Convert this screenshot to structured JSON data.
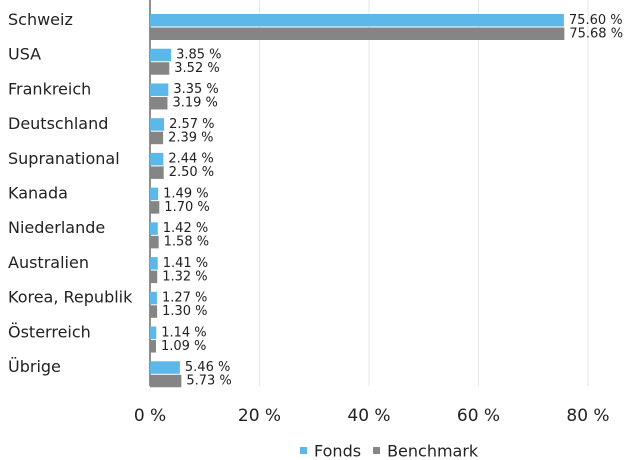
{
  "chart_data": {
    "type": "bar",
    "orientation": "horizontal",
    "categories": [
      "Schweiz",
      "USA",
      "Frankreich",
      "Deutschland",
      "Supranational",
      "Kanada",
      "Niederlande",
      "Australien",
      "Korea, Republik",
      "Österreich",
      "Übrige"
    ],
    "series": [
      {
        "name": "Fonds",
        "color": "#5bb8e8",
        "values": [
          75.6,
          3.85,
          3.35,
          2.57,
          2.44,
          1.49,
          1.42,
          1.41,
          1.27,
          1.14,
          5.46
        ],
        "value_labels": [
          "75.60 %",
          "3.85 %",
          "3.35 %",
          "2.57 %",
          "2.44 %",
          "1.49 %",
          "1.42 %",
          "1.41 %",
          "1.27 %",
          "1.14 %",
          "5.46 %"
        ]
      },
      {
        "name": "Benchmark",
        "color": "#858585",
        "values": [
          75.68,
          3.52,
          3.19,
          2.39,
          2.5,
          1.7,
          1.58,
          1.32,
          1.3,
          1.09,
          5.73
        ],
        "value_labels": [
          "75.68 %",
          "3.52 %",
          "3.19 %",
          "2.39 %",
          "2.50 %",
          "1.70 %",
          "1.58 %",
          "1.32 %",
          "1.30 %",
          "1.09 %",
          "5.73 %"
        ]
      }
    ],
    "xlim": [
      0,
      80
    ],
    "xticks": [
      {
        "value": 0,
        "label": "0 %"
      },
      {
        "value": 20,
        "label": "20 %"
      },
      {
        "value": 40,
        "label": "40 %"
      },
      {
        "value": 60,
        "label": "60 %"
      },
      {
        "value": 80,
        "label": "80 %"
      }
    ],
    "grid": true,
    "legend": "bottom"
  }
}
